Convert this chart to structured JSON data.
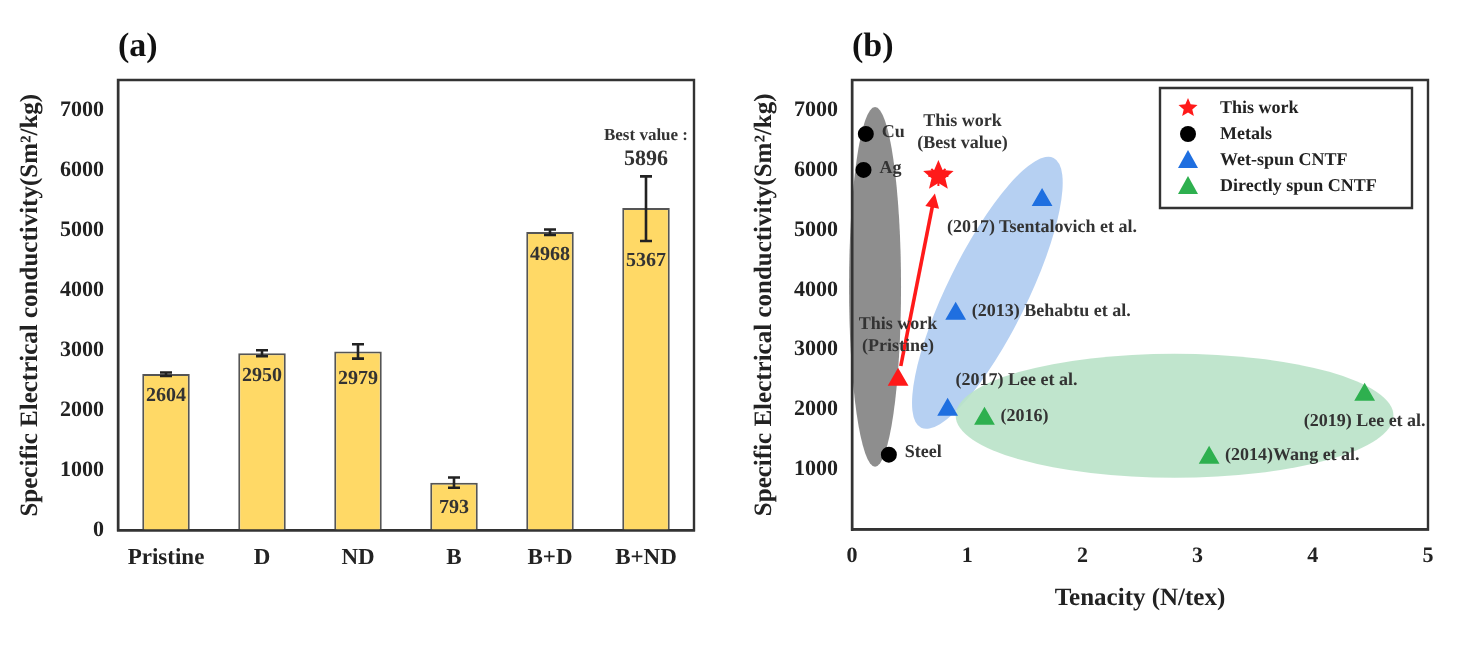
{
  "chart_data": [
    {
      "type": "bar",
      "title": "(a)",
      "ylabel": "Specific Electrical conductivity(Sm²/kg)",
      "categories": [
        "Pristine",
        "D",
        "ND",
        "B",
        "B+D",
        "B+ND"
      ],
      "values": [
        2604,
        2950,
        2979,
        793,
        4968,
        5367
      ],
      "color": "#ffd966",
      "errors": [
        [
          2570,
          2630
        ],
        [
          2900,
          3000
        ],
        [
          2860,
          3100
        ],
        [
          710,
          880
        ],
        [
          4920,
          5010
        ],
        [
          4820,
          5896
        ]
      ],
      "data_labels": true,
      "ylim": [
        0,
        7500
      ],
      "yticks": [
        0,
        1000,
        2000,
        3000,
        4000,
        5000,
        6000,
        7000
      ],
      "grid": false,
      "legend": false,
      "annotations": [
        {
          "text": "Best value :",
          "x": "B+ND",
          "y": 5896
        },
        {
          "text": "5896",
          "x": "B+ND",
          "y": 5896
        }
      ]
    },
    {
      "type": "scatter",
      "title": "(b)",
      "xlabel": "Tenacity (N/tex)",
      "ylabel": "Specific Electrical conductivity(Sm²/kg)",
      "xlim": [
        0,
        5
      ],
      "xticks": [
        0,
        1,
        2,
        3,
        4,
        5
      ],
      "ylim": [
        0,
        7500
      ],
      "yticks": [
        1000,
        2000,
        3000,
        4000,
        5000,
        6000,
        7000
      ],
      "grid": false,
      "legend": "top right",
      "series": [
        {
          "name": "This work",
          "color": "#ff1a1a",
          "marker": "star",
          "x": [
            0.75
          ],
          "values": [
            5900
          ]
        },
        {
          "color": "#ff1a1a",
          "marker": "triangle",
          "x": [
            0.4
          ],
          "values": [
            2500
          ]
        },
        {
          "name": "Metals",
          "color": "#000000",
          "marker": "circle",
          "x": [
            0.12,
            0.1,
            0.32
          ],
          "values": [
            6600,
            6000,
            1250
          ]
        },
        {
          "name": "Wet-spun CNTF",
          "color": "#1f6fe0",
          "marker": "triangle",
          "x": [
            1.65,
            0.9,
            0.83
          ],
          "values": [
            5500,
            3600,
            2000
          ]
        },
        {
          "name": "Directly spun CNTF",
          "color": "#2eb04f",
          "marker": "triangle",
          "x": [
            4.45,
            1.15,
            3.1
          ],
          "values": [
            2250,
            1850,
            1200
          ]
        }
      ],
      "annotations": [
        {
          "text": "Cu",
          "x": 0.12,
          "y": 6600
        },
        {
          "text": "Ag",
          "x": 0.1,
          "y": 6000
        },
        {
          "text": "Steel",
          "x": 0.32,
          "y": 1250
        },
        {
          "text": "This work",
          "x": 0.75,
          "y": 5900
        },
        {
          "text": "(Best value)",
          "x": 0.75,
          "y": 5900
        },
        {
          "text": "This work",
          "x": 0.4,
          "y": 2500
        },
        {
          "text": "(Pristine)",
          "x": 0.4,
          "y": 2500
        },
        {
          "text": "(2017) Tsentalovich et al.",
          "x": 1.65,
          "y": 5500
        },
        {
          "text": "(2013) Behabtu et al.",
          "x": 0.9,
          "y": 3600
        },
        {
          "text": "(2017) Lee et al.",
          "x": 0.83,
          "y": 2000
        },
        {
          "text": "(2016)",
          "x": 1.15,
          "y": 1850
        },
        {
          "text": "(2014)Wang et al.",
          "x": 3.1,
          "y": 1200
        },
        {
          "text": "(2019) Lee et al.",
          "x": 4.45,
          "y": 2250
        }
      ]
    }
  ]
}
